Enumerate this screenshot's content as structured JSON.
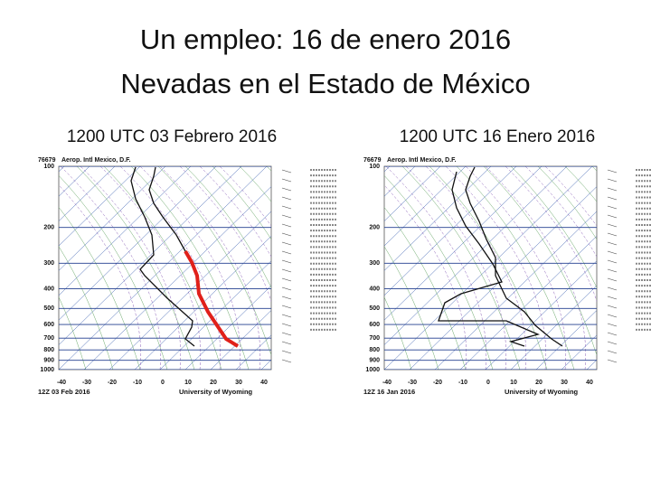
{
  "slide": {
    "title_lines": [
      "Un empleo: 16 de enero 2016",
      "Nevadas en el Estado de México"
    ],
    "panels": [
      {
        "caption": "1200 UTC 03 Febrero 2016",
        "station": "76679",
        "station_name": "Aerop. Intl Mexico, D.F.",
        "pressure_labels": [
          "100",
          "200",
          "300",
          "400",
          "500",
          "600",
          "700",
          "800",
          "900",
          "1000"
        ],
        "temperature_labels": [
          "-40",
          "-30",
          "-20",
          "-10",
          "0",
          "10",
          "20",
          "30",
          "40"
        ],
        "footer_time": "12Z 03 Feb 2016",
        "footer_source": "University of Wyoming"
      },
      {
        "caption": "1200 UTC 16 Enero 2016",
        "station": "76679",
        "station_name": "Aerop. Intl Mexico, D.F.",
        "pressure_labels": [
          "100",
          "200",
          "300",
          "400",
          "500",
          "600",
          "700",
          "800",
          "900",
          "1000"
        ],
        "temperature_labels": [
          "-40",
          "-30",
          "-20",
          "-10",
          "0",
          "10",
          "20",
          "30",
          "40"
        ],
        "footer_time": "12Z 16 Jan 2016",
        "footer_source": "University of Wyoming"
      }
    ]
  }
}
